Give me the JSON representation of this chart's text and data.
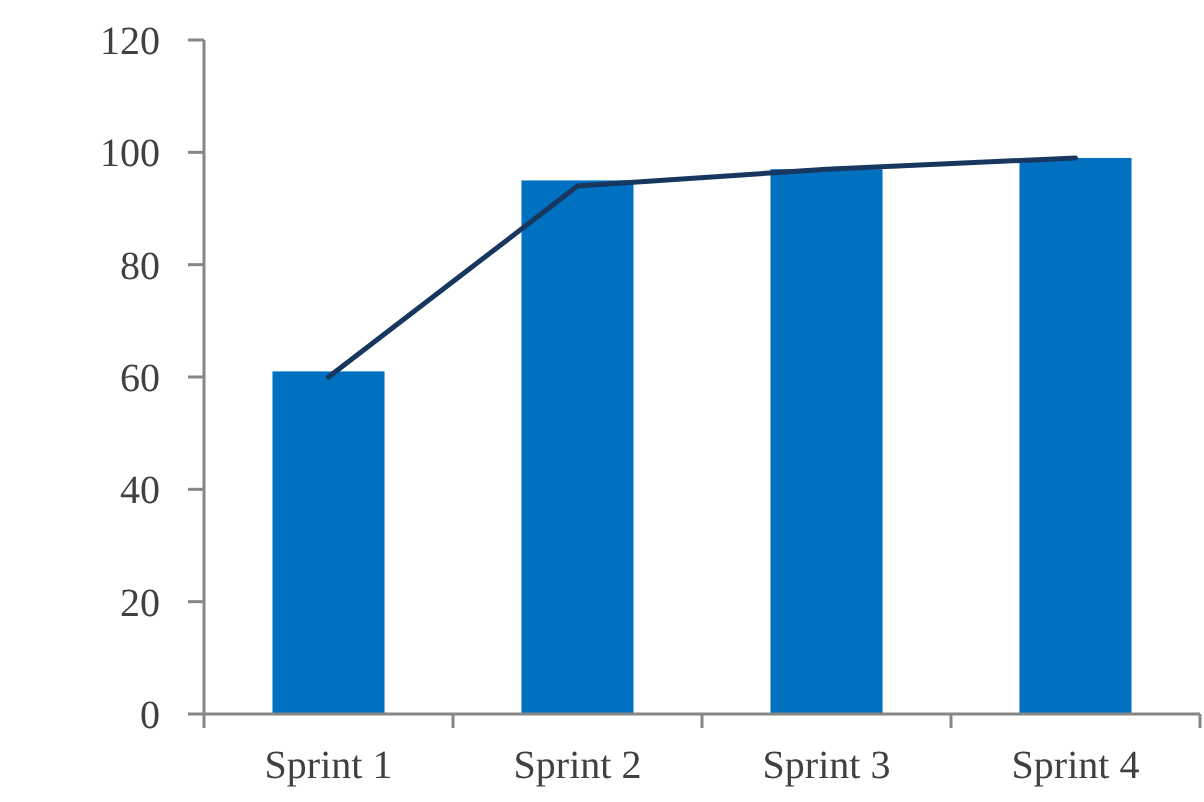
{
  "chart_data": {
    "type": "bar",
    "categories": [
      "Sprint 1",
      "Sprint 2",
      "Sprint 3",
      "Sprint 4"
    ],
    "series": [
      {
        "color": "#0070c0",
        "values": [
          61,
          95,
          97,
          99
        ]
      },
      {
        "type": "line",
        "color": "#17375e",
        "values": [
          60,
          94,
          97,
          99
        ]
      }
    ],
    "ylim": [
      0,
      120
    ],
    "yticks": [
      0,
      20,
      40,
      60,
      80,
      100,
      120
    ],
    "grid": false,
    "marker": "none"
  }
}
